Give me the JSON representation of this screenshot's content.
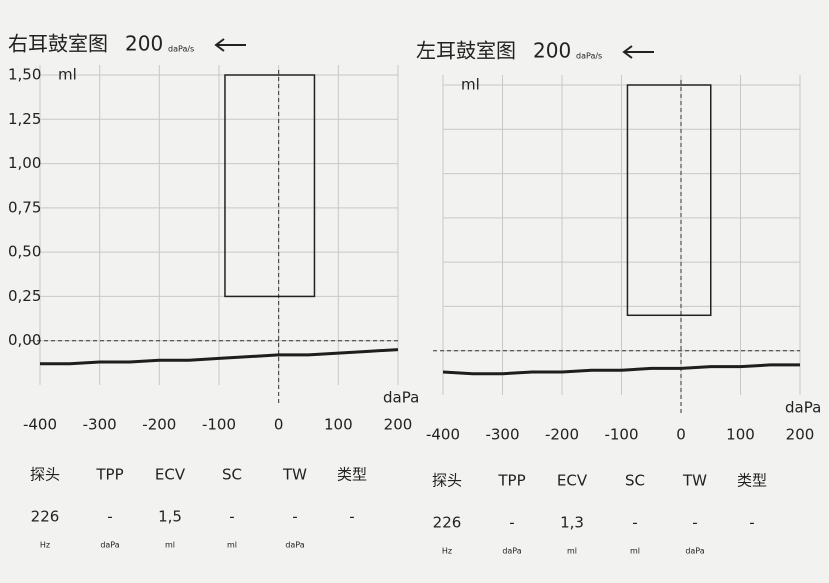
{
  "chart_data": [
    {
      "type": "line",
      "title": "右耳鼓室图",
      "rate": "200",
      "rate_unit": "daPa/s",
      "y_label": "ml",
      "x_label": "daPa",
      "xlim": [
        -400,
        200
      ],
      "ylim": [
        -0.25,
        1.5
      ],
      "xticks": [
        -400,
        -300,
        -200,
        -100,
        0,
        100,
        200
      ],
      "yticks": [
        {
          "value": 0,
          "label": "0,00"
        },
        {
          "value": 0.25,
          "label": "0,25"
        },
        {
          "value": 0.5,
          "label": "0,50"
        },
        {
          "value": 0.75,
          "label": "0,75"
        },
        {
          "value": 1,
          "label": "1,00"
        },
        {
          "value": 1.25,
          "label": "1,25"
        },
        {
          "value": 1.5,
          "label": "1,50"
        }
      ],
      "ytick_labels_visible": true,
      "grid": true,
      "x": [
        -400,
        -350,
        -300,
        -250,
        -200,
        -150,
        -100,
        -50,
        0,
        50,
        100,
        150,
        200
      ],
      "series": [
        {
          "color": "#1e1e1e",
          "values": [
            -0.13,
            -0.13,
            -0.12,
            -0.12,
            -0.11,
            -0.11,
            -0.1,
            -0.09,
            -0.08,
            -0.08,
            -0.07,
            -0.06,
            -0.05
          ]
        }
      ],
      "region": {
        "x": [
          -90,
          60
        ],
        "y": [
          0.25,
          1.5
        ]
      },
      "table": {
        "headers": [
          "探头",
          "TPP",
          "ECV",
          "SC",
          "TW",
          "类型"
        ],
        "values": [
          "226",
          "-",
          "1,5",
          "-",
          "-",
          "-"
        ],
        "units": [
          "Hz",
          "daPa",
          "ml",
          "ml",
          "daPa"
        ]
      }
    },
    {
      "type": "line",
      "title": "左耳鼓室图",
      "rate": "200",
      "rate_unit": "daPa/s",
      "y_label": "ml",
      "x_label": "daPa",
      "xlim": [
        -400,
        200
      ],
      "ylim": [
        -0.25,
        1.5
      ],
      "xticks": [
        -400,
        -300,
        -200,
        -100,
        0,
        100,
        200
      ],
      "yticks": [
        0,
        0.25,
        0.5,
        0.75,
        1,
        1.25,
        1.5
      ],
      "ytick_labels_visible": false,
      "grid": true,
      "x": [
        -400,
        -350,
        -300,
        -250,
        -200,
        -150,
        -100,
        -50,
        0,
        50,
        100,
        150,
        200
      ],
      "series": [
        {
          "color": "#1e1e1e",
          "values": [
            -0.12,
            -0.13,
            -0.13,
            -0.12,
            -0.12,
            -0.11,
            -0.11,
            -0.1,
            -0.1,
            -0.09,
            -0.09,
            -0.08,
            -0.08
          ]
        }
      ],
      "region": {
        "x": [
          -90,
          50
        ],
        "y": [
          0.2,
          1.5
        ]
      },
      "table": {
        "headers": [
          "探头",
          "TPP",
          "ECV",
          "SC",
          "TW",
          "类型"
        ],
        "values": [
          "226",
          "-",
          "1,3",
          "-",
          "-",
          "-"
        ],
        "units": [
          "Hz",
          "daPa",
          "ml",
          "ml",
          "daPa"
        ]
      }
    }
  ]
}
